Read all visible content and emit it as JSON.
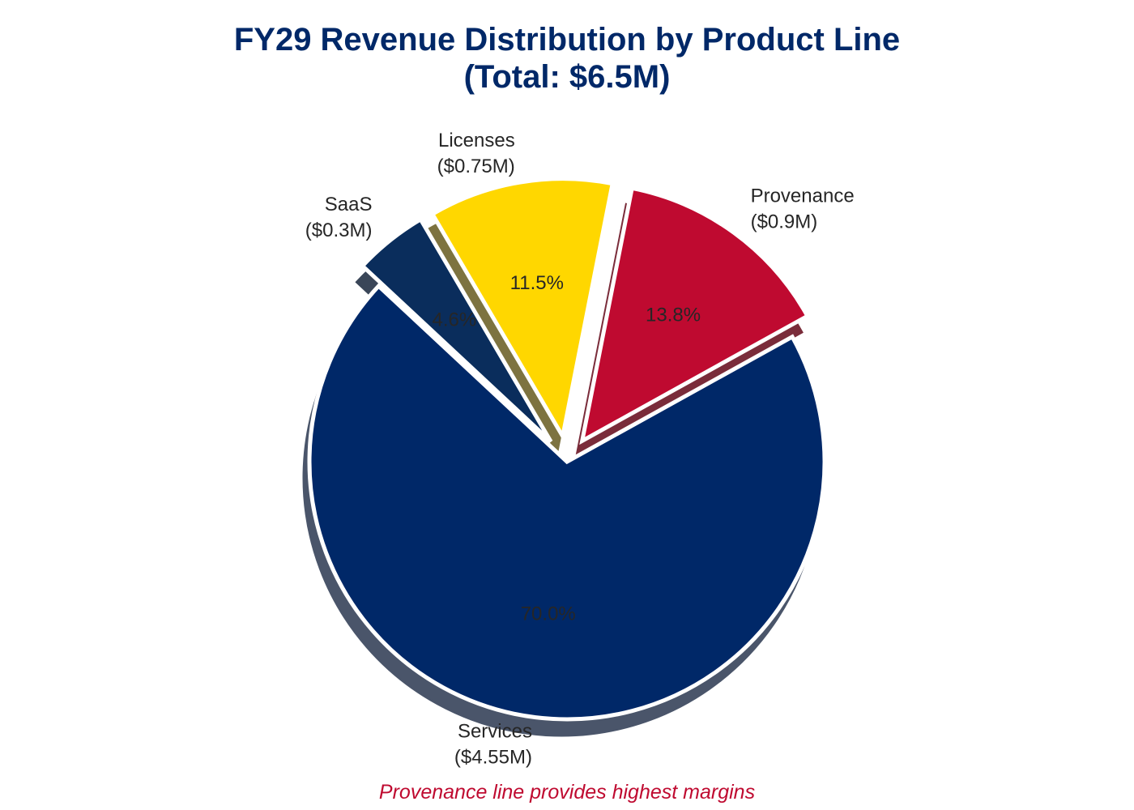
{
  "chart_data": {
    "type": "pie",
    "title_line1": "FY29 Revenue Distribution by Product Line",
    "title_line2": "(Total: $6.5M)",
    "slices": [
      {
        "label": "Services",
        "amount_label": "($4.55M)",
        "value": 4.55,
        "percent_label": "70.0%",
        "color": "#002868",
        "exploded": false
      },
      {
        "label": "Provenance",
        "amount_label": "($0.9M)",
        "value": 0.9,
        "percent_label": "13.8%",
        "color": "#bf0a30",
        "exploded": true
      },
      {
        "label": "Licenses",
        "amount_label": "($0.75M)",
        "value": 0.75,
        "percent_label": "11.5%",
        "color": "#ffd700",
        "exploded": true
      },
      {
        "label": "SaaS",
        "amount_label": "($0.3M)",
        "value": 0.3,
        "percent_label": "4.6%",
        "color": "#0a2d5c",
        "exploded": true
      }
    ],
    "shadow": true,
    "annotation": "Provenance line provides highest margins"
  }
}
